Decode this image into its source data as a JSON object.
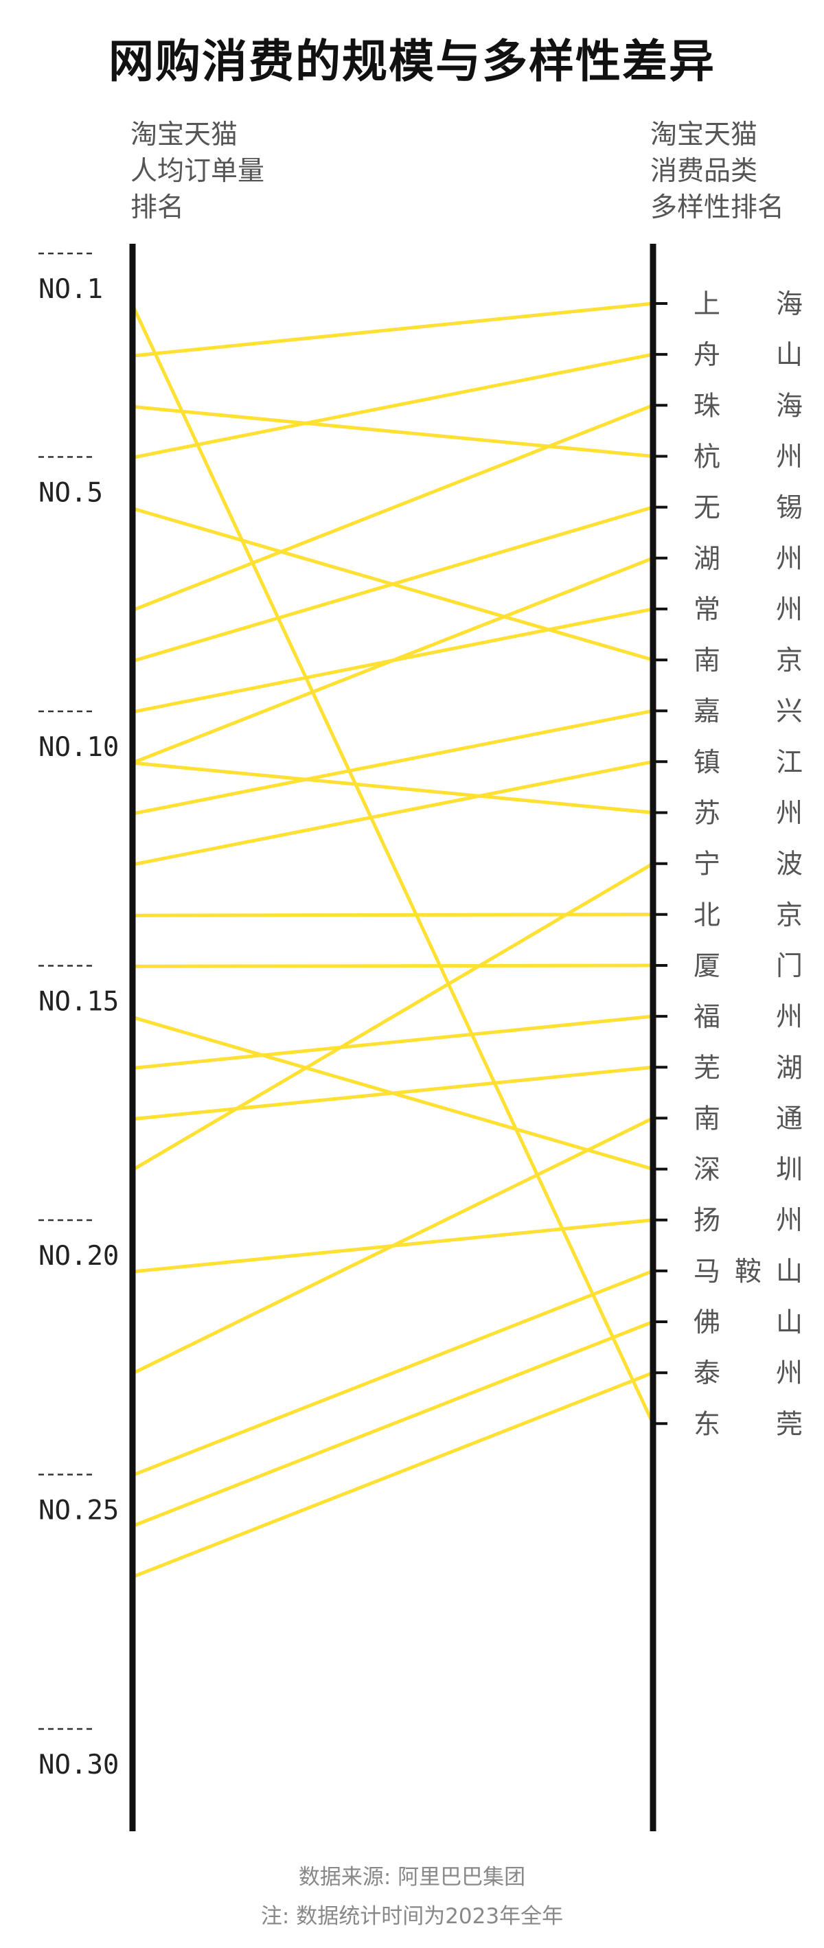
{
  "chart_data": {
    "type": "slope",
    "title": "网购消费的规模与多样性差异",
    "left_axis_label": [
      "淘宝天猫",
      "人均订单量",
      "排名"
    ],
    "right_axis_label": [
      "淘宝天猫",
      "消费品类",
      "多样性排名"
    ],
    "left_ticks": [
      "NO.1",
      "NO.5",
      "NO.10",
      "NO.15",
      "NO.20",
      "NO.25",
      "NO.30"
    ],
    "left_tick_values": [
      1,
      5,
      10,
      15,
      20,
      25,
      30
    ],
    "left_range": [
      0,
      30
    ],
    "right_range": [
      1,
      23
    ],
    "line_color": "#FFE033",
    "axis_color": "#111111",
    "cities": [
      {
        "name": "上海",
        "diversity_rank": 1,
        "order_rank": 2
      },
      {
        "name": "舟山",
        "diversity_rank": 2,
        "order_rank": 4
      },
      {
        "name": "珠海",
        "diversity_rank": 3,
        "order_rank": 7
      },
      {
        "name": "杭州",
        "diversity_rank": 4,
        "order_rank": 3
      },
      {
        "name": "无锡",
        "diversity_rank": 5,
        "order_rank": 8
      },
      {
        "name": "湖州",
        "diversity_rank": 6,
        "order_rank": 10
      },
      {
        "name": "常州",
        "diversity_rank": 7,
        "order_rank": 9
      },
      {
        "name": "南京",
        "diversity_rank": 8,
        "order_rank": 5
      },
      {
        "name": "嘉兴",
        "diversity_rank": 9,
        "order_rank": 11
      },
      {
        "name": "镇江",
        "diversity_rank": 10,
        "order_rank": 12
      },
      {
        "name": "苏州",
        "diversity_rank": 11,
        "order_rank": 10
      },
      {
        "name": "宁波",
        "diversity_rank": 12,
        "order_rank": 18
      },
      {
        "name": "北京",
        "diversity_rank": 13,
        "order_rank": 13
      },
      {
        "name": "厦门",
        "diversity_rank": 14,
        "order_rank": 14
      },
      {
        "name": "福州",
        "diversity_rank": 15,
        "order_rank": 16
      },
      {
        "name": "芜湖",
        "diversity_rank": 16,
        "order_rank": 17
      },
      {
        "name": "南通",
        "diversity_rank": 17,
        "order_rank": 22
      },
      {
        "name": "深圳",
        "diversity_rank": 18,
        "order_rank": 15
      },
      {
        "name": "扬州",
        "diversity_rank": 19,
        "order_rank": 20
      },
      {
        "name": "马鞍山",
        "diversity_rank": 20,
        "order_rank": 24
      },
      {
        "name": "佛山",
        "diversity_rank": 21,
        "order_rank": 25
      },
      {
        "name": "泰州",
        "diversity_rank": 22,
        "order_rank": 26
      },
      {
        "name": "东莞",
        "diversity_rank": 23,
        "order_rank": 1
      }
    ]
  },
  "footer": {
    "source": "数据来源: 阿里巴巴集团",
    "note": "注: 数据统计时间为2023年全年"
  }
}
